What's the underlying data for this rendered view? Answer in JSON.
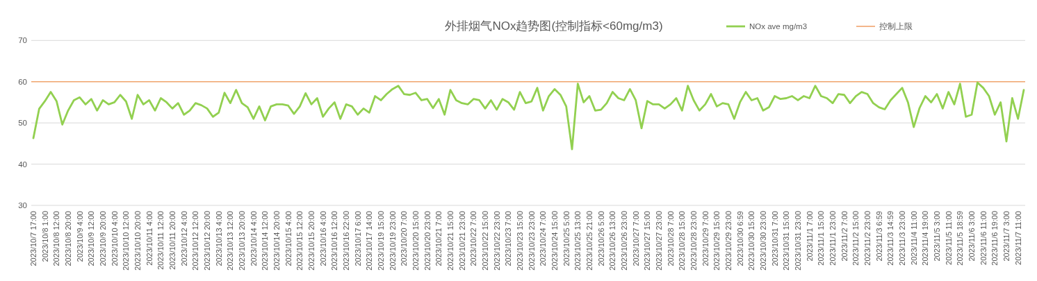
{
  "chart_data": {
    "type": "line",
    "title": "外排烟气NOx趋势图(控制指标<60mg/m3)",
    "categories": [
      "2023/10/7 17:00",
      null,
      "2023/10/8 1:00",
      null,
      "2023/10/8 12:00",
      null,
      "2023/10/8 20:00",
      null,
      "2023/10/9 4:00",
      null,
      "2023/10/9 12:00",
      null,
      "2023/10/9 20:00",
      null,
      "2023/10/10 4:00",
      null,
      "2023/10/10 12:00",
      null,
      "2023/10/10 20:00",
      null,
      "2023/10/11 4:00",
      null,
      "2023/10/11 12:00",
      null,
      "2023/10/11 20:00",
      null,
      "2023/10/12 4:00",
      null,
      "2023/10/12 12:00",
      null,
      "2023/10/12 20:00",
      null,
      "2023/10/13 4:00",
      null,
      "2023/10/13 12:00",
      null,
      "2023/10/13 20:00",
      null,
      "2023/10/14 4:00",
      null,
      "2023/10/14 12:00",
      null,
      "2023/10/14 20:00",
      null,
      "2023/10/15 4:00",
      null,
      "2023/10/15 12:00",
      null,
      "2023/10/15 20:00",
      null,
      "2023/10/16 4:00",
      null,
      "2023/10/16 12:00",
      null,
      "2023/10/16 22:00",
      null,
      "2023/10/17 6:00",
      null,
      "2023/10/17 14:00",
      null,
      "2023/10/19 15:00",
      null,
      "2023/10/19 23:00",
      null,
      "2023/10/20 7:00",
      null,
      "2023/10/20 15:00",
      null,
      "2023/10/20 23:00",
      null,
      "2023/10/21 7:00",
      null,
      "2023/10/21 15:00",
      null,
      "2023/10/21 23:00",
      null,
      "2023/10/22 7:00",
      null,
      "2023/10/22 15:00",
      null,
      "2023/10/22 23:00",
      null,
      "2023/10/23 7:00",
      null,
      "2023/10/23 15:00",
      null,
      "2023/10/23 23:00",
      null,
      "2023/10/24 7:00",
      null,
      "2023/10/24 15:00",
      null,
      "2023/10/25 5:00",
      null,
      "2023/10/25 13:00",
      null,
      "2023/10/25 21:00",
      null,
      "2023/10/26 5:00",
      null,
      "2023/10/26 13:00",
      null,
      "2023/10/26 23:00",
      null,
      "2023/10/27 7:00",
      null,
      "2023/10/27 15:00",
      null,
      "2023/10/27 23:00",
      null,
      "2023/10/28 7:00",
      null,
      "2023/10/28 15:00",
      null,
      "2023/10/28 23:00",
      null,
      "2023/10/29 7:00",
      null,
      "2023/10/29 15:00",
      null,
      "2023/10/29 23:00",
      null,
      "2023/10/30 6:59",
      null,
      "2023/10/30 15:00",
      null,
      "2023/10/30 23:00",
      null,
      "2023/10/31 7:00",
      null,
      "2023/10/31 15:00",
      null,
      "2023/10/31 23:00",
      null,
      "2023/11/1 7:00",
      null,
      "2023/11/1 15:00",
      null,
      "2023/11/1 23:00",
      null,
      "2023/11/2 7:00",
      null,
      "2023/11/2 15:00",
      null,
      "2023/11/2 23:00",
      null,
      "2023/11/3 6:59",
      null,
      "2023/11/3 14:59",
      null,
      "2023/11/3 23:00",
      null,
      "2023/11/4 11:00",
      null,
      "2023/11/4 19:00",
      null,
      "2023/11/5 3:00",
      null,
      "2023/11/5 11:00",
      null,
      "2023/11/5 18:59",
      null,
      "2023/11/6 3:00",
      null,
      "2023/11/6 11:00",
      null,
      "2023/11/6 19:00",
      null,
      "2023/11/7 3:00",
      null,
      "2023/11/7 11:00",
      null
    ],
    "series": [
      {
        "name": "NOx ave mg/m3",
        "color": "#92d050",
        "values": [
          46.3,
          53.4,
          55.3,
          57.5,
          55.3,
          49.6,
          53.0,
          55.5,
          56.2,
          54.5,
          55.8,
          53.0,
          55.5,
          54.5,
          55.0,
          56.8,
          55.2,
          51.0,
          56.8,
          54.5,
          55.5,
          53.0,
          56.0,
          55.0,
          53.5,
          54.8,
          52.0,
          53.0,
          54.8,
          54.3,
          53.5,
          51.5,
          52.5,
          57.3,
          54.8,
          58.0,
          54.8,
          53.8,
          51.0,
          54.0,
          50.6,
          54.0,
          54.5,
          54.5,
          54.2,
          52.2,
          54.0,
          57.2,
          54.5,
          56.0,
          51.5,
          53.5,
          55.0,
          51.0,
          54.5,
          54.0,
          52.0,
          53.5,
          52.5,
          56.5,
          55.5,
          57.0,
          58.2,
          59.0,
          57.0,
          56.8,
          57.3,
          55.5,
          55.8,
          53.6,
          55.8,
          52.0,
          58.0,
          55.5,
          54.8,
          54.5,
          55.8,
          55.5,
          53.5,
          55.5,
          53.2,
          55.8,
          55.0,
          53.2,
          57.5,
          54.8,
          55.2,
          58.5,
          53.0,
          56.5,
          58.2,
          56.8,
          54.0,
          43.6,
          59.5,
          55.0,
          56.5,
          53.0,
          53.2,
          54.8,
          57.5,
          56.0,
          55.5,
          58.2,
          55.5,
          48.7,
          55.3,
          54.5,
          54.5,
          53.5,
          54.5,
          56.0,
          53.0,
          59.0,
          55.5,
          53.0,
          54.5,
          57.0,
          54.0,
          54.8,
          54.5,
          51.0,
          55.0,
          57.5,
          55.5,
          56.0,
          53.0,
          53.8,
          56.5,
          55.8,
          56.0,
          56.5,
          55.5,
          56.5,
          56.0,
          59.0,
          56.5,
          56.0,
          54.8,
          57.0,
          56.8,
          54.8,
          56.5,
          57.5,
          57.0,
          54.8,
          53.8,
          53.3,
          55.5,
          57.0,
          58.5,
          55.0,
          49.0,
          53.6,
          56.5,
          55.0,
          57.0,
          53.5,
          57.5,
          54.5,
          59.5,
          51.5,
          52.0,
          59.8,
          58.5,
          56.5,
          52.0,
          55.0,
          45.5,
          56.0,
          51.0,
          58.0
        ]
      }
    ],
    "ref_lines": [
      {
        "axis": "y",
        "value": 60,
        "label": "控制上限",
        "color": "#f0a46c"
      }
    ],
    "ylim": [
      30,
      70
    ],
    "yticks": [
      30,
      40,
      50,
      60,
      70
    ],
    "grid": "y",
    "legend": "top right"
  }
}
